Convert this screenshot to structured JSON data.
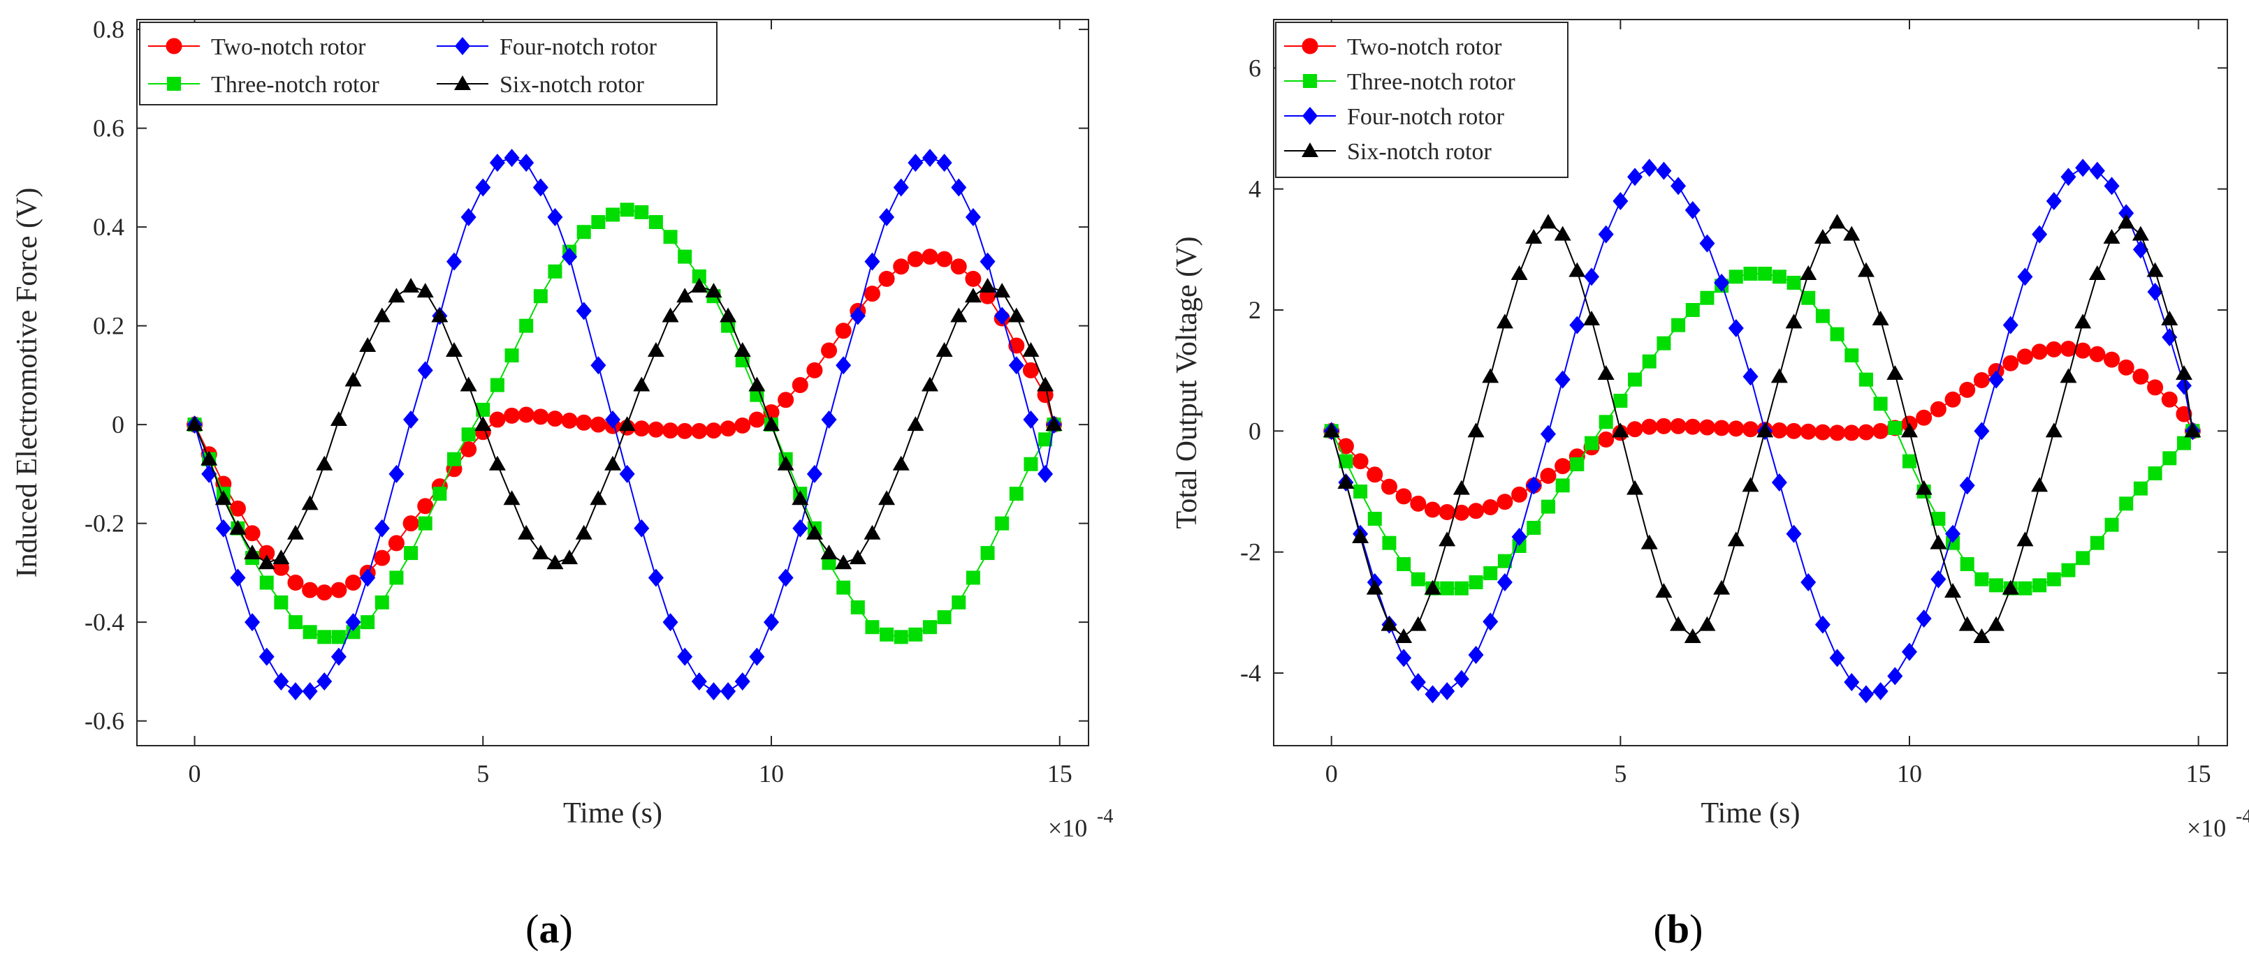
{
  "panels": [
    {
      "id": "a",
      "panel_label_open": "(",
      "panel_label_letter": "a",
      "panel_label_close": ")",
      "chart_data": {
        "type": "line",
        "title": "",
        "xlabel": "Time (s)",
        "ylabel": "Induced Electromotive Force (V)",
        "x_multiplier": "×10",
        "x_exponent": "-4",
        "xlim": [
          -1,
          15.5
        ],
        "ylim": [
          -0.65,
          0.82
        ],
        "xticks": [
          0,
          5,
          10,
          15
        ],
        "xtick_labels": [
          "0",
          "5",
          "10",
          "15"
        ],
        "yticks": [
          -0.6,
          -0.4,
          -0.2,
          0,
          0.2,
          0.4,
          0.6,
          0.8
        ],
        "ytick_labels": [
          "-0.6",
          "-0.4",
          "-0.2",
          "0",
          "0.2",
          "0.4",
          "0.6",
          "0.8"
        ],
        "legend_location": "top-left",
        "legend_columns": 2,
        "x": [
          0,
          0.25,
          0.5,
          0.75,
          1,
          1.25,
          1.5,
          1.75,
          2,
          2.25,
          2.5,
          2.75,
          3,
          3.25,
          3.5,
          3.75,
          4,
          4.25,
          4.5,
          4.75,
          5,
          5.25,
          5.5,
          5.75,
          6,
          6.25,
          6.5,
          6.75,
          7,
          7.25,
          7.5,
          7.75,
          8,
          8.25,
          8.5,
          8.75,
          9,
          9.25,
          9.5,
          9.75,
          10,
          10.25,
          10.5,
          10.75,
          11,
          11.25,
          11.5,
          11.75,
          12,
          12.25,
          12.5,
          12.75,
          13,
          13.25,
          13.5,
          13.75,
          14,
          14.25,
          14.5,
          14.75,
          14.9
        ],
        "series": [
          {
            "name": "Two-notch rotor",
            "color": "#ff0000",
            "marker": "circle",
            "values": [
              0,
              -0.06,
              -0.12,
              -0.17,
              -0.22,
              -0.26,
              -0.29,
              -0.32,
              -0.335,
              -0.34,
              -0.335,
              -0.32,
              -0.3,
              -0.27,
              -0.24,
              -0.2,
              -0.165,
              -0.125,
              -0.09,
              -0.05,
              -0.015,
              0.01,
              0.018,
              0.02,
              0.016,
              0.012,
              0.008,
              0.004,
              0,
              -0.003,
              -0.006,
              -0.008,
              -0.01,
              -0.012,
              -0.013,
              -0.013,
              -0.012,
              -0.008,
              -0.002,
              0.01,
              0.025,
              0.05,
              0.08,
              0.11,
              0.15,
              0.19,
              0.23,
              0.265,
              0.295,
              0.32,
              0.335,
              0.34,
              0.335,
              0.32,
              0.295,
              0.26,
              0.215,
              0.16,
              0.11,
              0.06,
              0
            ]
          },
          {
            "name": "Three-notch rotor",
            "color": "#00dd00",
            "marker": "square",
            "values": [
              0,
              -0.07,
              -0.14,
              -0.21,
              -0.27,
              -0.32,
              -0.36,
              -0.4,
              -0.42,
              -0.43,
              -0.43,
              -0.42,
              -0.4,
              -0.36,
              -0.31,
              -0.26,
              -0.2,
              -0.14,
              -0.07,
              -0.02,
              0.03,
              0.08,
              0.14,
              0.2,
              0.26,
              0.31,
              0.35,
              0.39,
              0.41,
              0.425,
              0.435,
              0.43,
              0.41,
              0.38,
              0.34,
              0.3,
              0.26,
              0.2,
              0.13,
              0.06,
              0,
              -0.07,
              -0.14,
              -0.21,
              -0.28,
              -0.33,
              -0.37,
              -0.41,
              -0.425,
              -0.43,
              -0.425,
              -0.41,
              -0.39,
              -0.36,
              -0.31,
              -0.26,
              -0.2,
              -0.14,
              -0.08,
              -0.03,
              0
            ]
          },
          {
            "name": "Four-notch rotor",
            "color": "#0000ff",
            "marker": "diamond",
            "values": [
              0,
              -0.1,
              -0.21,
              -0.31,
              -0.4,
              -0.47,
              -0.52,
              -0.54,
              -0.54,
              -0.52,
              -0.47,
              -0.4,
              -0.31,
              -0.21,
              -0.1,
              0.01,
              0.11,
              0.22,
              0.33,
              0.42,
              0.48,
              0.53,
              0.54,
              0.53,
              0.48,
              0.42,
              0.34,
              0.23,
              0.12,
              0.01,
              -0.1,
              -0.21,
              -0.31,
              -0.4,
              -0.47,
              -0.52,
              -0.54,
              -0.54,
              -0.52,
              -0.47,
              -0.4,
              -0.31,
              -0.21,
              -0.1,
              0.01,
              0.12,
              0.22,
              0.33,
              0.42,
              0.48,
              0.53,
              0.54,
              0.53,
              0.48,
              0.42,
              0.33,
              0.22,
              0.12,
              0.01,
              -0.1,
              0
            ]
          },
          {
            "name": "Six-notch rotor",
            "color": "#000000",
            "marker": "triangle",
            "values": [
              0,
              -0.07,
              -0.15,
              -0.21,
              -0.26,
              -0.28,
              -0.27,
              -0.22,
              -0.16,
              -0.08,
              0.01,
              0.09,
              0.16,
              0.22,
              0.26,
              0.28,
              0.27,
              0.22,
              0.15,
              0.08,
              0,
              -0.08,
              -0.15,
              -0.22,
              -0.26,
              -0.28,
              -0.27,
              -0.22,
              -0.15,
              -0.08,
              0,
              0.08,
              0.15,
              0.22,
              0.26,
              0.28,
              0.27,
              0.22,
              0.15,
              0.08,
              0,
              -0.08,
              -0.15,
              -0.22,
              -0.26,
              -0.28,
              -0.27,
              -0.22,
              -0.15,
              -0.08,
              0,
              0.08,
              0.15,
              0.22,
              0.26,
              0.28,
              0.27,
              0.22,
              0.15,
              0.08,
              0
            ]
          }
        ]
      }
    },
    {
      "id": "b",
      "panel_label_open": "(",
      "panel_label_letter": "b",
      "panel_label_close": ")",
      "chart_data": {
        "type": "line",
        "title": "",
        "xlabel": "Time (s)",
        "ylabel": "Total Output Voltage (V)",
        "x_multiplier": "×10",
        "x_exponent": "-4",
        "xlim": [
          -1,
          15.5
        ],
        "ylim": [
          -5.2,
          6.8
        ],
        "xticks": [
          0,
          5,
          10,
          15
        ],
        "xtick_labels": [
          "0",
          "5",
          "10",
          "15"
        ],
        "yticks": [
          -4,
          -2,
          0,
          2,
          4,
          6
        ],
        "ytick_labels": [
          "-4",
          "-2",
          "0",
          "2",
          "4",
          "6"
        ],
        "legend_location": "top-left",
        "legend_columns": 1,
        "x": [
          0,
          0.25,
          0.5,
          0.75,
          1,
          1.25,
          1.5,
          1.75,
          2,
          2.25,
          2.5,
          2.75,
          3,
          3.25,
          3.5,
          3.75,
          4,
          4.25,
          4.5,
          4.75,
          5,
          5.25,
          5.5,
          5.75,
          6,
          6.25,
          6.5,
          6.75,
          7,
          7.25,
          7.5,
          7.75,
          8,
          8.25,
          8.5,
          8.75,
          9,
          9.25,
          9.5,
          9.75,
          10,
          10.25,
          10.5,
          10.75,
          11,
          11.25,
          11.5,
          11.75,
          12,
          12.25,
          12.5,
          12.75,
          13,
          13.25,
          13.5,
          13.75,
          14,
          14.25,
          14.5,
          14.75,
          14.9
        ],
        "series": [
          {
            "name": "Two-notch rotor",
            "color": "#ff0000",
            "marker": "circle",
            "values": [
              0,
              -0.25,
              -0.5,
              -0.72,
              -0.92,
              -1.08,
              -1.2,
              -1.3,
              -1.34,
              -1.35,
              -1.32,
              -1.26,
              -1.17,
              -1.05,
              -0.9,
              -0.74,
              -0.58,
              -0.42,
              -0.27,
              -0.14,
              -0.03,
              0.03,
              0.07,
              0.08,
              0.08,
              0.07,
              0.06,
              0.05,
              0.04,
              0.03,
              0.02,
              0.01,
              0,
              -0.01,
              -0.02,
              -0.03,
              -0.03,
              -0.02,
              0,
              0.05,
              0.12,
              0.22,
              0.36,
              0.52,
              0.68,
              0.84,
              0.99,
              1.12,
              1.23,
              1.31,
              1.35,
              1.36,
              1.33,
              1.27,
              1.18,
              1.05,
              0.9,
              0.72,
              0.52,
              0.28,
              0
            ]
          },
          {
            "name": "Three-notch rotor",
            "color": "#00dd00",
            "marker": "square",
            "values": [
              0,
              -0.5,
              -1,
              -1.45,
              -1.85,
              -2.2,
              -2.45,
              -2.6,
              -2.6,
              -2.6,
              -2.5,
              -2.35,
              -2.15,
              -1.9,
              -1.6,
              -1.25,
              -0.9,
              -0.55,
              -0.2,
              0.15,
              0.5,
              0.85,
              1.15,
              1.45,
              1.75,
              2,
              2.2,
              2.4,
              2.55,
              2.6,
              2.6,
              2.55,
              2.45,
              2.2,
              1.9,
              1.6,
              1.25,
              0.85,
              0.45,
              0.05,
              -0.5,
              -1,
              -1.45,
              -1.85,
              -2.2,
              -2.45,
              -2.55,
              -2.6,
              -2.6,
              -2.55,
              -2.45,
              -2.3,
              -2.1,
              -1.85,
              -1.55,
              -1.2,
              -0.95,
              -0.7,
              -0.45,
              -0.2,
              0
            ]
          },
          {
            "name": "Four-notch rotor",
            "color": "#0000ff",
            "marker": "diamond",
            "values": [
              0,
              -0.85,
              -1.7,
              -2.5,
              -3.2,
              -3.75,
              -4.15,
              -4.35,
              -4.3,
              -4.1,
              -3.7,
              -3.15,
              -2.5,
              -1.75,
              -0.9,
              -0.05,
              0.85,
              1.75,
              2.55,
              3.25,
              3.8,
              4.2,
              4.35,
              4.3,
              4.05,
              3.65,
              3.1,
              2.45,
              1.7,
              0.9,
              0,
              -0.85,
              -1.7,
              -2.5,
              -3.2,
              -3.75,
              -4.15,
              -4.35,
              -4.3,
              -4.05,
              -3.65,
              -3.1,
              -2.45,
              -1.7,
              -0.9,
              0,
              0.85,
              1.75,
              2.55,
              3.25,
              3.8,
              4.2,
              4.35,
              4.3,
              4.05,
              3.6,
              3.0,
              2.3,
              1.55,
              0.75,
              0
            ]
          },
          {
            "name": "Six-notch rotor",
            "color": "#000000",
            "marker": "triangle",
            "values": [
              0,
              -0.85,
              -1.75,
              -2.6,
              -3.2,
              -3.4,
              -3.2,
              -2.6,
              -1.8,
              -0.95,
              0,
              0.9,
              1.8,
              2.6,
              3.2,
              3.45,
              3.25,
              2.65,
              1.85,
              0.95,
              0,
              -0.95,
              -1.85,
              -2.65,
              -3.2,
              -3.4,
              -3.2,
              -2.6,
              -1.8,
              -0.9,
              0,
              0.9,
              1.8,
              2.6,
              3.2,
              3.45,
              3.25,
              2.65,
              1.85,
              0.95,
              0,
              -0.95,
              -1.85,
              -2.65,
              -3.2,
              -3.4,
              -3.2,
              -2.6,
              -1.8,
              -0.9,
              0,
              0.9,
              1.8,
              2.6,
              3.2,
              3.45,
              3.25,
              2.65,
              1.85,
              0.95,
              0
            ]
          }
        ]
      }
    }
  ]
}
